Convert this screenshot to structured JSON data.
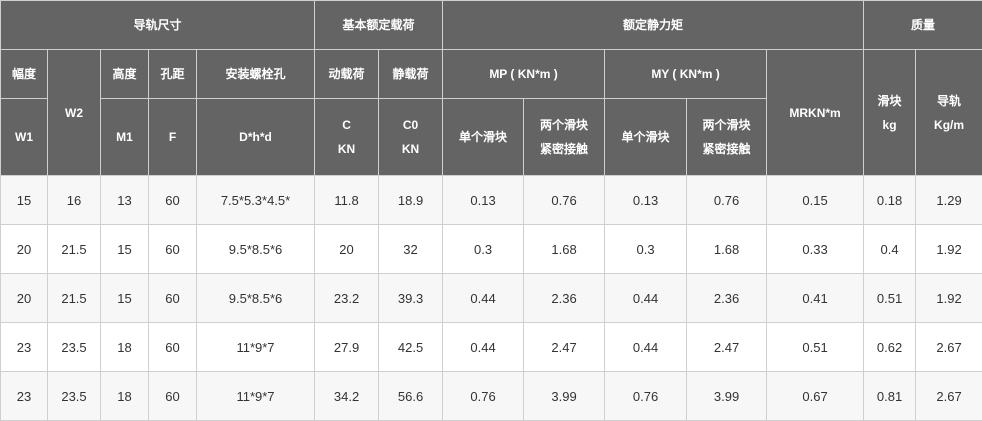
{
  "header": {
    "groups": [
      "导轨尺寸",
      "基本额定载荷",
      "额定静力矩",
      "质量"
    ],
    "row2": {
      "w1_top": "幅度",
      "w2": "W2",
      "m1_top": "高度",
      "f_top": "孔距",
      "bolt_top": "安装螺栓孔",
      "c_top": "动载荷",
      "c0_top": "静载荷",
      "mp": "MP ( KN*m )",
      "my": "MY ( KN*m )",
      "mr": "MRKN*m",
      "slider_top": "滑块",
      "slider_unit": "kg",
      "rail_top": "导轨",
      "rail_unit": "Kg/m"
    },
    "row3": {
      "w1": "W1",
      "m1": "M1",
      "f": "F",
      "bolt": "D*h*d",
      "c": "C",
      "c_unit": "KN",
      "c0": "C0",
      "c0_unit": "KN",
      "mp_single": "单个滑块",
      "mp_double_1": "两个滑块",
      "mp_double_2": "紧密接触",
      "my_single": "单个滑块",
      "my_double_1": "两个滑块",
      "my_double_2": "紧密接触"
    }
  },
  "rows": [
    [
      "15",
      "16",
      "13",
      "60",
      "7.5*5.3*4.5*",
      "11.8",
      "18.9",
      "0.13",
      "0.76",
      "0.13",
      "0.76",
      "0.15",
      "0.18",
      "1.29"
    ],
    [
      "20",
      "21.5",
      "15",
      "60",
      "9.5*8.5*6",
      "20",
      "32",
      "0.3",
      "1.68",
      "0.3",
      "1.68",
      "0.33",
      "0.4",
      "1.92"
    ],
    [
      "20",
      "21.5",
      "15",
      "60",
      "9.5*8.5*6",
      "23.2",
      "39.3",
      "0.44",
      "2.36",
      "0.44",
      "2.36",
      "0.41",
      "0.51",
      "1.92"
    ],
    [
      "23",
      "23.5",
      "18",
      "60",
      "11*9*7",
      "27.9",
      "42.5",
      "0.44",
      "2.47",
      "0.44",
      "2.47",
      "0.51",
      "0.62",
      "2.67"
    ],
    [
      "23",
      "23.5",
      "18",
      "60",
      "11*9*7",
      "34.2",
      "56.6",
      "0.76",
      "3.99",
      "0.76",
      "3.99",
      "0.67",
      "0.81",
      "2.67"
    ]
  ],
  "colors": {
    "header_bg": "#646464",
    "header_text": "#ffffff",
    "odd_row": "#f7f7f7",
    "even_row": "#ffffff",
    "border": "#cfcfcf",
    "text": "#333333"
  }
}
